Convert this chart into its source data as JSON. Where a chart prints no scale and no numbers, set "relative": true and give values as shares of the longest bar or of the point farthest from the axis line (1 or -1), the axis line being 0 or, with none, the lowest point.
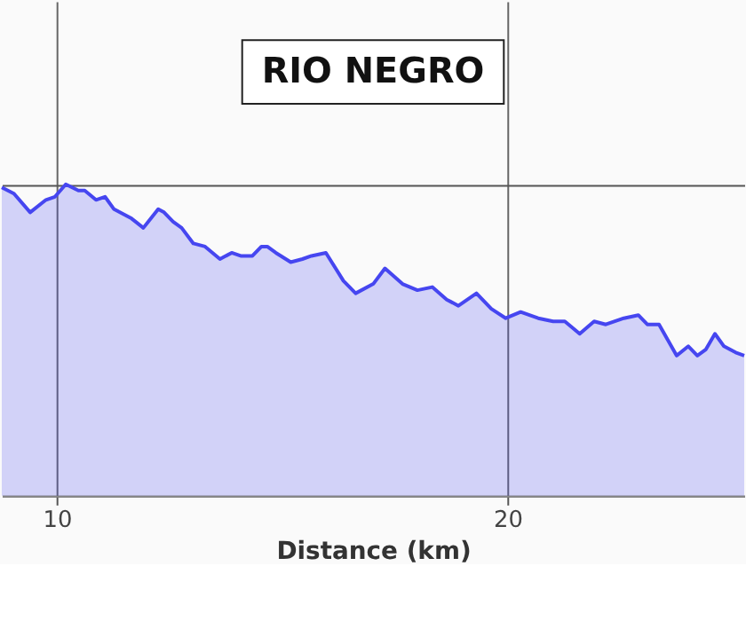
{
  "chart_data": {
    "type": "area",
    "title": "RIO NEGRO",
    "xlabel": "Distance (km)",
    "relative": true,
    "grid": true,
    "xlim": [
      8.78,
      25.25
    ],
    "xticks": [
      10,
      20
    ],
    "series": [
      {
        "color": "#4646f0",
        "x": [
          8.78,
          9.05,
          9.41,
          9.76,
          9.96,
          10.2,
          10.48,
          10.62,
          10.87,
          11.07,
          11.27,
          11.53,
          11.66,
          11.92,
          12.25,
          12.38,
          12.58,
          12.77,
          13.03,
          13.29,
          13.62,
          13.88,
          14.08,
          14.34,
          14.54,
          14.67,
          14.86,
          15.19,
          15.45,
          15.65,
          15.97,
          16.36,
          16.63,
          17.02,
          17.28,
          17.67,
          18.0,
          18.33,
          18.65,
          18.91,
          19.31,
          19.64,
          19.96,
          20.29,
          20.68,
          21.01,
          21.27,
          21.6,
          21.92,
          22.18,
          22.58,
          22.9,
          23.1,
          23.36,
          23.75,
          24.01,
          24.21,
          24.4,
          24.6,
          24.8,
          25.06,
          25.25
        ],
        "values": [
          0.99,
          0.97,
          0.91,
          0.95,
          0.96,
          1.0,
          0.98,
          0.98,
          0.95,
          0.96,
          0.92,
          0.9,
          0.89,
          0.86,
          0.92,
          0.91,
          0.88,
          0.86,
          0.81,
          0.8,
          0.76,
          0.78,
          0.77,
          0.77,
          0.8,
          0.8,
          0.78,
          0.75,
          0.76,
          0.77,
          0.78,
          0.69,
          0.65,
          0.68,
          0.73,
          0.68,
          0.66,
          0.67,
          0.63,
          0.61,
          0.65,
          0.6,
          0.57,
          0.59,
          0.57,
          0.56,
          0.56,
          0.52,
          0.56,
          0.55,
          0.57,
          0.58,
          0.55,
          0.55,
          0.45,
          0.48,
          0.45,
          0.47,
          0.52,
          0.48,
          0.46,
          0.45
        ]
      }
    ]
  }
}
